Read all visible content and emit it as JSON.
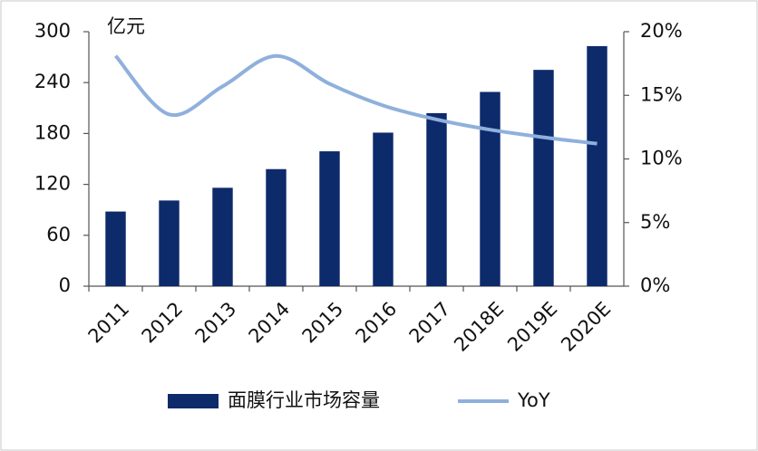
{
  "chart_data": {
    "type": "bar-line",
    "annotation": "亿元",
    "categories": [
      "2011",
      "2012",
      "2013",
      "2014",
      "2015",
      "2016",
      "2017",
      "2018E",
      "2019E",
      "2020E"
    ],
    "series": [
      {
        "name": "面膜行业市场容量",
        "type": "bar",
        "color": "#0d2a6b",
        "values": [
          88,
          101,
          116,
          138,
          159,
          181,
          204,
          229,
          255,
          283
        ]
      },
      {
        "name": "YoY",
        "type": "line",
        "axis": "y2",
        "color": "#8fb0dc",
        "values": [
          18.1,
          13.5,
          15.7,
          18.1,
          15.9,
          14.2,
          13.1,
          12.3,
          11.7,
          11.2
        ]
      }
    ],
    "ylim": [
      0,
      300
    ],
    "yticks": [
      0,
      60,
      120,
      180,
      240,
      300
    ],
    "y2lim": [
      0,
      20
    ],
    "y2ticks": [
      {
        "value": 0,
        "label": "0%"
      },
      {
        "value": 5,
        "label": "5%"
      },
      {
        "value": 10,
        "label": "10%"
      },
      {
        "value": 15,
        "label": "15%"
      },
      {
        "value": 20,
        "label": "20%"
      }
    ],
    "legend": "bottom"
  }
}
